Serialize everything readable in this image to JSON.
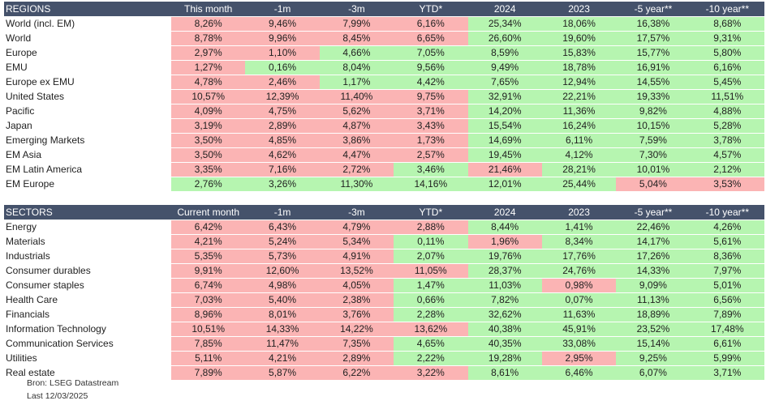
{
  "colors": {
    "header_bg": "#45526b",
    "pink": "#fbb4b4",
    "green": "#b6f5b0"
  },
  "regions": {
    "headers": [
      "REGIONS",
      "This month",
      "-1m",
      "-3m",
      "YTD*",
      "2024",
      "2023",
      "-5 year**",
      "-10 year**"
    ],
    "rows": [
      {
        "label": "World (incl. EM)",
        "cells": [
          {
            "v": "8,26%",
            "c": "pink"
          },
          {
            "v": "9,46%",
            "c": "pink"
          },
          {
            "v": "7,99%",
            "c": "pink"
          },
          {
            "v": "6,16%",
            "c": "pink"
          },
          {
            "v": "25,34%",
            "c": "green"
          },
          {
            "v": "18,06%",
            "c": "green"
          },
          {
            "v": "16,38%",
            "c": "green"
          },
          {
            "v": "8,68%",
            "c": "green"
          }
        ]
      },
      {
        "label": "World",
        "cells": [
          {
            "v": "8,78%",
            "c": "pink"
          },
          {
            "v": "9,96%",
            "c": "pink"
          },
          {
            "v": "8,45%",
            "c": "pink"
          },
          {
            "v": "6,65%",
            "c": "pink"
          },
          {
            "v": "26,60%",
            "c": "green"
          },
          {
            "v": "19,60%",
            "c": "green"
          },
          {
            "v": "17,57%",
            "c": "green"
          },
          {
            "v": "9,31%",
            "c": "green"
          }
        ]
      },
      {
        "label": "Europe",
        "cells": [
          {
            "v": "2,97%",
            "c": "pink"
          },
          {
            "v": "1,10%",
            "c": "pink"
          },
          {
            "v": "4,66%",
            "c": "green"
          },
          {
            "v": "7,05%",
            "c": "green"
          },
          {
            "v": "8,59%",
            "c": "green"
          },
          {
            "v": "15,83%",
            "c": "green"
          },
          {
            "v": "15,77%",
            "c": "green"
          },
          {
            "v": "5,80%",
            "c": "green"
          }
        ]
      },
      {
        "label": "EMU",
        "cells": [
          {
            "v": "1,27%",
            "c": "pink"
          },
          {
            "v": "0,16%",
            "c": "green"
          },
          {
            "v": "8,04%",
            "c": "green"
          },
          {
            "v": "9,56%",
            "c": "green"
          },
          {
            "v": "9,49%",
            "c": "green"
          },
          {
            "v": "18,78%",
            "c": "green"
          },
          {
            "v": "16,91%",
            "c": "green"
          },
          {
            "v": "6,16%",
            "c": "green"
          }
        ]
      },
      {
        "label": "Europe ex  EMU",
        "cells": [
          {
            "v": "4,78%",
            "c": "pink"
          },
          {
            "v": "2,46%",
            "c": "pink"
          },
          {
            "v": "1,17%",
            "c": "green"
          },
          {
            "v": "4,42%",
            "c": "green"
          },
          {
            "v": "7,65%",
            "c": "green"
          },
          {
            "v": "12,94%",
            "c": "green"
          },
          {
            "v": "14,55%",
            "c": "green"
          },
          {
            "v": "5,45%",
            "c": "green"
          }
        ]
      },
      {
        "label": "United States",
        "cells": [
          {
            "v": "10,57%",
            "c": "pink"
          },
          {
            "v": "12,39%",
            "c": "pink"
          },
          {
            "v": "11,40%",
            "c": "pink"
          },
          {
            "v": "9,75%",
            "c": "pink"
          },
          {
            "v": "32,91%",
            "c": "green"
          },
          {
            "v": "22,21%",
            "c": "green"
          },
          {
            "v": "19,33%",
            "c": "green"
          },
          {
            "v": "11,51%",
            "c": "green"
          }
        ]
      },
      {
        "label": "Pacific",
        "cells": [
          {
            "v": "4,09%",
            "c": "pink"
          },
          {
            "v": "4,75%",
            "c": "pink"
          },
          {
            "v": "5,62%",
            "c": "pink"
          },
          {
            "v": "3,71%",
            "c": "pink"
          },
          {
            "v": "14,20%",
            "c": "green"
          },
          {
            "v": "11,36%",
            "c": "green"
          },
          {
            "v": "9,82%",
            "c": "green"
          },
          {
            "v": "4,88%",
            "c": "green"
          }
        ]
      },
      {
        "label": "Japan",
        "cells": [
          {
            "v": "3,19%",
            "c": "pink"
          },
          {
            "v": "2,89%",
            "c": "pink"
          },
          {
            "v": "4,87%",
            "c": "pink"
          },
          {
            "v": "3,43%",
            "c": "pink"
          },
          {
            "v": "15,54%",
            "c": "green"
          },
          {
            "v": "16,24%",
            "c": "green"
          },
          {
            "v": "10,15%",
            "c": "green"
          },
          {
            "v": "5,28%",
            "c": "green"
          }
        ]
      },
      {
        "label": "Emerging Markets",
        "cells": [
          {
            "v": "3,50%",
            "c": "pink"
          },
          {
            "v": "4,85%",
            "c": "pink"
          },
          {
            "v": "3,86%",
            "c": "pink"
          },
          {
            "v": "1,73%",
            "c": "pink"
          },
          {
            "v": "14,69%",
            "c": "green"
          },
          {
            "v": "6,11%",
            "c": "green"
          },
          {
            "v": "7,59%",
            "c": "green"
          },
          {
            "v": "3,78%",
            "c": "green"
          }
        ]
      },
      {
        "label": "EM Asia",
        "cells": [
          {
            "v": "3,50%",
            "c": "pink"
          },
          {
            "v": "4,62%",
            "c": "pink"
          },
          {
            "v": "4,47%",
            "c": "pink"
          },
          {
            "v": "2,57%",
            "c": "pink"
          },
          {
            "v": "19,45%",
            "c": "green"
          },
          {
            "v": "4,12%",
            "c": "green"
          },
          {
            "v": "7,30%",
            "c": "green"
          },
          {
            "v": "4,57%",
            "c": "green"
          }
        ]
      },
      {
        "label": "EM Latin  America",
        "cells": [
          {
            "v": "3,35%",
            "c": "pink"
          },
          {
            "v": "7,16%",
            "c": "pink"
          },
          {
            "v": "2,72%",
            "c": "pink"
          },
          {
            "v": "3,46%",
            "c": "green"
          },
          {
            "v": "21,46%",
            "c": "pink"
          },
          {
            "v": "28,21%",
            "c": "green"
          },
          {
            "v": "10,01%",
            "c": "green"
          },
          {
            "v": "2,12%",
            "c": "green"
          }
        ]
      },
      {
        "label": "EM Europe",
        "cells": [
          {
            "v": "2,76%",
            "c": "green"
          },
          {
            "v": "3,26%",
            "c": "green"
          },
          {
            "v": "11,30%",
            "c": "green"
          },
          {
            "v": "14,16%",
            "c": "green"
          },
          {
            "v": "12,01%",
            "c": "green"
          },
          {
            "v": "25,44%",
            "c": "green"
          },
          {
            "v": "5,04%",
            "c": "pink"
          },
          {
            "v": "3,53%",
            "c": "pink"
          }
        ]
      }
    ]
  },
  "sectors": {
    "headers": [
      "SECTORS",
      "Current month",
      "-1m",
      "-3m",
      "YTD*",
      "2024",
      "2023",
      "-5 year**",
      "-10 year**"
    ],
    "rows": [
      {
        "label": "Energy",
        "cells": [
          {
            "v": "6,42%",
            "c": "pink"
          },
          {
            "v": "6,43%",
            "c": "pink"
          },
          {
            "v": "4,79%",
            "c": "pink"
          },
          {
            "v": "2,88%",
            "c": "pink"
          },
          {
            "v": "8,44%",
            "c": "green"
          },
          {
            "v": "1,41%",
            "c": "green"
          },
          {
            "v": "22,46%",
            "c": "green"
          },
          {
            "v": "4,26%",
            "c": "green"
          }
        ]
      },
      {
        "label": "Materials",
        "cells": [
          {
            "v": "4,21%",
            "c": "pink"
          },
          {
            "v": "5,24%",
            "c": "pink"
          },
          {
            "v": "5,34%",
            "c": "pink"
          },
          {
            "v": "0,11%",
            "c": "green"
          },
          {
            "v": "1,96%",
            "c": "pink"
          },
          {
            "v": "8,34%",
            "c": "green"
          },
          {
            "v": "14,17%",
            "c": "green"
          },
          {
            "v": "5,61%",
            "c": "green"
          }
        ]
      },
      {
        "label": "Industrials",
        "cells": [
          {
            "v": "5,35%",
            "c": "pink"
          },
          {
            "v": "5,73%",
            "c": "pink"
          },
          {
            "v": "4,91%",
            "c": "pink"
          },
          {
            "v": "2,07%",
            "c": "green"
          },
          {
            "v": "19,76%",
            "c": "green"
          },
          {
            "v": "17,76%",
            "c": "green"
          },
          {
            "v": "17,26%",
            "c": "green"
          },
          {
            "v": "8,36%",
            "c": "green"
          }
        ]
      },
      {
        "label": "Consumer durables",
        "cells": [
          {
            "v": "9,91%",
            "c": "pink"
          },
          {
            "v": "12,60%",
            "c": "pink"
          },
          {
            "v": "13,52%",
            "c": "pink"
          },
          {
            "v": "11,05%",
            "c": "pink"
          },
          {
            "v": "28,37%",
            "c": "green"
          },
          {
            "v": "24,76%",
            "c": "green"
          },
          {
            "v": "14,33%",
            "c": "green"
          },
          {
            "v": "7,97%",
            "c": "green"
          }
        ]
      },
      {
        "label": "Consumer staples",
        "cells": [
          {
            "v": "6,74%",
            "c": "pink"
          },
          {
            "v": "4,98%",
            "c": "pink"
          },
          {
            "v": "4,05%",
            "c": "pink"
          },
          {
            "v": "1,47%",
            "c": "green"
          },
          {
            "v": "11,03%",
            "c": "green"
          },
          {
            "v": "0,98%",
            "c": "pink"
          },
          {
            "v": "9,09%",
            "c": "green"
          },
          {
            "v": "5,01%",
            "c": "green"
          }
        ]
      },
      {
        "label": "Health Care",
        "cells": [
          {
            "v": "7,03%",
            "c": "pink"
          },
          {
            "v": "5,40%",
            "c": "pink"
          },
          {
            "v": "2,38%",
            "c": "pink"
          },
          {
            "v": "0,66%",
            "c": "green"
          },
          {
            "v": "7,82%",
            "c": "green"
          },
          {
            "v": "0,07%",
            "c": "green"
          },
          {
            "v": "11,13%",
            "c": "green"
          },
          {
            "v": "6,56%",
            "c": "green"
          }
        ]
      },
      {
        "label": "Financials",
        "cells": [
          {
            "v": "8,96%",
            "c": "pink"
          },
          {
            "v": "8,01%",
            "c": "pink"
          },
          {
            "v": "3,76%",
            "c": "pink"
          },
          {
            "v": "2,28%",
            "c": "green"
          },
          {
            "v": "32,62%",
            "c": "green"
          },
          {
            "v": "11,63%",
            "c": "green"
          },
          {
            "v": "18,89%",
            "c": "green"
          },
          {
            "v": "7,89%",
            "c": "green"
          }
        ]
      },
      {
        "label": "Information Technology",
        "cells": [
          {
            "v": "10,51%",
            "c": "pink"
          },
          {
            "v": "14,33%",
            "c": "pink"
          },
          {
            "v": "14,22%",
            "c": "pink"
          },
          {
            "v": "13,62%",
            "c": "pink"
          },
          {
            "v": "40,38%",
            "c": "green"
          },
          {
            "v": "45,91%",
            "c": "green"
          },
          {
            "v": "23,52%",
            "c": "green"
          },
          {
            "v": "17,48%",
            "c": "green"
          }
        ]
      },
      {
        "label": "Communication Services",
        "cells": [
          {
            "v": "7,85%",
            "c": "pink"
          },
          {
            "v": "11,47%",
            "c": "pink"
          },
          {
            "v": "7,35%",
            "c": "pink"
          },
          {
            "v": "4,65%",
            "c": "green"
          },
          {
            "v": "40,35%",
            "c": "green"
          },
          {
            "v": "33,08%",
            "c": "green"
          },
          {
            "v": "15,14%",
            "c": "green"
          },
          {
            "v": "6,61%",
            "c": "green"
          }
        ]
      },
      {
        "label": "Utilities",
        "cells": [
          {
            "v": "5,11%",
            "c": "pink"
          },
          {
            "v": "4,21%",
            "c": "pink"
          },
          {
            "v": "2,89%",
            "c": "pink"
          },
          {
            "v": "2,22%",
            "c": "green"
          },
          {
            "v": "19,28%",
            "c": "green"
          },
          {
            "v": "2,95%",
            "c": "pink"
          },
          {
            "v": "9,25%",
            "c": "green"
          },
          {
            "v": "5,99%",
            "c": "green"
          }
        ]
      },
      {
        "label": "Real estate",
        "cells": [
          {
            "v": "7,89%",
            "c": "pink"
          },
          {
            "v": "5,87%",
            "c": "pink"
          },
          {
            "v": "6,22%",
            "c": "pink"
          },
          {
            "v": "3,22%",
            "c": "pink"
          },
          {
            "v": "8,61%",
            "c": "green"
          },
          {
            "v": "6,46%",
            "c": "green"
          },
          {
            "v": "6,07%",
            "c": "green"
          },
          {
            "v": "3,71%",
            "c": "green"
          }
        ]
      }
    ]
  },
  "footnotes": {
    "source": "Bron: LSEG Datastream",
    "date": "Last 12/03/2025"
  }
}
